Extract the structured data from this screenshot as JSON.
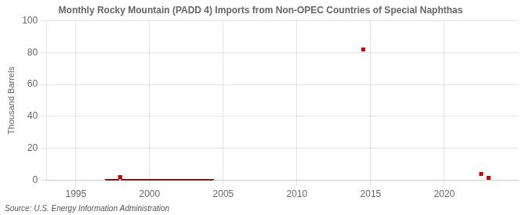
{
  "chart_data": {
    "type": "line",
    "title": "Monthly Rocky Mountain (PADD 4) Imports from Non-OPEC Countries of Special Naphthas",
    "ylabel": "Thousand Barrels",
    "annotations": [
      "Source: U.S. Energy Information Administration"
    ],
    "xlim": [
      1993.0,
      2025.0
    ],
    "xticks": [
      1995,
      2000,
      2005,
      2010,
      2015,
      2020
    ],
    "ylim": [
      0,
      100
    ],
    "yticks": [
      0,
      20,
      40,
      60,
      80,
      100
    ],
    "grid": true,
    "series": [
      {
        "type": "line",
        "color": "#8B0000",
        "marker": "square",
        "line_style": "solid",
        "x": [
          1997.0417,
          1997.125,
          1997.2083,
          1997.2917,
          1997.375,
          1997.4583,
          1997.5417,
          1997.625,
          1997.7083,
          1997.7917,
          1997.875,
          1997.9583,
          1998.0417,
          1998.125,
          1998.2083,
          1998.2917,
          1998.375,
          1998.4583,
          1998.5417,
          1998.625,
          1998.7083,
          1998.7917,
          1998.875,
          1998.9583,
          1999.0417,
          1999.125,
          1999.2083,
          1999.2917,
          1999.375,
          1999.4583,
          1999.5417,
          1999.625,
          1999.7083,
          1999.7917,
          1999.875,
          1999.9583,
          2000.0417,
          2000.125,
          2000.2083,
          2000.2917,
          2000.375,
          2000.4583,
          2000.5417,
          2000.625,
          2000.7083,
          2000.7917,
          2000.875,
          2000.9583,
          2001.0417,
          2001.125,
          2001.2083,
          2001.2917,
          2001.375,
          2001.4583,
          2001.5417,
          2001.625,
          2001.7083,
          2001.7917,
          2001.875,
          2001.9583,
          2002.0417,
          2002.125,
          2002.2083,
          2002.2917,
          2002.375,
          2002.4583,
          2002.5417,
          2002.625,
          2002.7083,
          2002.7917,
          2002.875,
          2002.9583,
          2003.0417,
          2003.125,
          2003.2083,
          2003.2917,
          2003.375,
          2003.4583,
          2003.5417,
          2003.625,
          2003.7083,
          2003.7917,
          2003.875,
          2003.9583,
          2004.0417,
          2004.125,
          2004.2083,
          2004.2917,
          2004.375,
          2014.4583,
          2014.5417,
          2014.625,
          2022.4583,
          2022.5417,
          2022.625,
          2022.9583,
          2023.0417
        ],
        "values": [
          0.15,
          0.15,
          0.15,
          0.15,
          0.15,
          0.15,
          0.15,
          0.15,
          0.15,
          0.15,
          0.15,
          2.0,
          2.0,
          0.15,
          0.15,
          0.15,
          0.15,
          0.15,
          0.15,
          0.15,
          0.15,
          0.15,
          0.15,
          0.15,
          0.15,
          0.15,
          0.15,
          0.15,
          0.15,
          0.15,
          0.15,
          0.15,
          0.15,
          0.15,
          0.15,
          0.15,
          0.15,
          0.15,
          0.15,
          0.15,
          0.15,
          0.15,
          0.15,
          0.15,
          0.15,
          0.15,
          0.15,
          0.15,
          0.15,
          0.15,
          0.15,
          0.15,
          0.15,
          0.15,
          0.15,
          0.15,
          0.15,
          0.15,
          0.15,
          0.15,
          0.15,
          0.15,
          0.15,
          0.15,
          0.15,
          0.15,
          0.15,
          0.15,
          0.15,
          0.15,
          0.15,
          0.15,
          0.15,
          0.15,
          0.15,
          0.15,
          0.15,
          0.15,
          0.15,
          0.15,
          0.15,
          0.15,
          0.15,
          0.15,
          0.15,
          0.15,
          0.15,
          0.15,
          null,
          82.0,
          82.0,
          null,
          4.0,
          4.0,
          null,
          1.5,
          1.5
        ]
      },
      {
        "type": "scatter",
        "color": "#cc0000",
        "marker": "square",
        "x": [
          2014.5,
          2022.5,
          2023.0,
          1998.0
        ],
        "values": [
          82.0,
          4.0,
          1.5,
          2.0
        ]
      }
    ]
  }
}
